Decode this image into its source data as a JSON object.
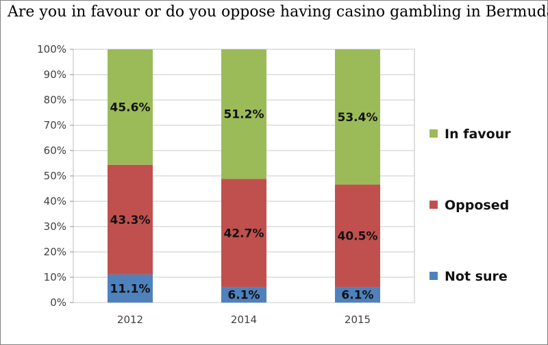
{
  "title": "Are you in favour or do you oppose having casino gambling in Bermuda??",
  "chart_data": {
    "type": "bar",
    "stacked": true,
    "categories": [
      "2012",
      "2014",
      "2015"
    ],
    "series": [
      {
        "name": "Not sure",
        "values": [
          11.1,
          6.1,
          6.1
        ],
        "labels": [
          "11.1%",
          "6.1%",
          "6.1%"
        ],
        "color": "#4f81bd"
      },
      {
        "name": "Opposed",
        "values": [
          43.3,
          42.7,
          40.5
        ],
        "labels": [
          "43.3%",
          "42.7%",
          "40.5%"
        ],
        "color": "#c0504d"
      },
      {
        "name": "In favour",
        "values": [
          45.6,
          51.2,
          53.4
        ],
        "labels": [
          "45.6%",
          "51.2%",
          "53.4%"
        ],
        "color": "#9bbb59"
      }
    ],
    "ylim": [
      0,
      100
    ],
    "ytick_labels": [
      "0%",
      "10%",
      "20%",
      "30%",
      "40%",
      "50%",
      "60%",
      "70%",
      "80%",
      "90%",
      "100%"
    ],
    "grid": true,
    "legend_position": "right"
  }
}
